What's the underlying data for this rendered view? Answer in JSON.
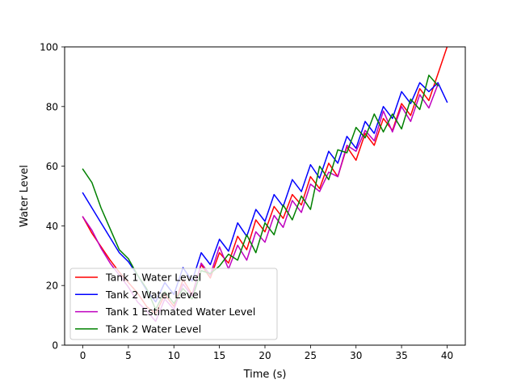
{
  "chart_data": {
    "type": "line",
    "title": "",
    "xlabel": "Time (s)",
    "ylabel": "Water Level",
    "xlim": [
      -2,
      42
    ],
    "ylim": [
      0,
      100
    ],
    "xticks": [
      0,
      5,
      10,
      15,
      20,
      25,
      30,
      35,
      40
    ],
    "yticks": [
      0,
      20,
      40,
      60,
      80,
      100
    ],
    "grid": false,
    "legend_position": "lower-left",
    "series": [
      {
        "name": "Tank 1 Water Level",
        "color": "#ff0000",
        "x": [
          0,
          1,
          2,
          3,
          4,
          5,
          6,
          7,
          8,
          9,
          10,
          11,
          12,
          13,
          14,
          15,
          16,
          17,
          18,
          19,
          20,
          21,
          22,
          23,
          24,
          25,
          26,
          27,
          28,
          29,
          30,
          31,
          32,
          33,
          34,
          35,
          36,
          37,
          38,
          39,
          40
        ],
        "y": [
          43,
          37.5,
          33,
          28.5,
          24.5,
          21,
          17.5,
          13,
          10.5,
          17,
          13,
          22,
          17,
          27,
          22.5,
          31,
          27.5,
          36.5,
          32,
          42,
          38,
          46.5,
          42.5,
          50.5,
          47,
          56.5,
          52.5,
          61,
          56.5,
          66.5,
          62,
          71,
          67,
          76,
          72,
          81,
          77,
          86,
          82,
          91,
          100
        ]
      },
      {
        "name": "Tank 2 Water Level",
        "color": "#0000ff",
        "x": [
          0,
          1,
          2,
          3,
          4,
          5,
          6,
          7,
          8,
          9,
          10,
          11,
          12,
          13,
          14,
          15,
          16,
          17,
          18,
          19,
          20,
          21,
          22,
          23,
          24,
          25,
          26,
          27,
          28,
          29,
          30,
          31,
          32,
          33,
          34,
          35,
          36,
          37,
          38,
          39,
          40
        ],
        "y": [
          51,
          46,
          41,
          36,
          31,
          28,
          23.5,
          18.5,
          14.5,
          21,
          17,
          26,
          21.5,
          31,
          27,
          35.5,
          31.5,
          41,
          36.5,
          45.5,
          41.5,
          50.5,
          46.5,
          55.5,
          51.5,
          60.5,
          56,
          65,
          61,
          70,
          66,
          75,
          71,
          80,
          76,
          85,
          81,
          88,
          85,
          88,
          81.5
        ]
      },
      {
        "name": "Tank 1 Estimated Water Level",
        "color": "#bf00bf",
        "x": [
          0,
          1,
          2,
          3,
          4,
          5,
          6,
          7,
          8,
          9,
          10,
          11,
          12,
          13,
          14,
          15,
          16,
          17,
          18,
          19,
          20,
          21,
          22,
          23,
          24,
          25,
          26,
          27,
          28,
          29,
          30,
          31,
          32,
          33,
          34,
          35,
          36,
          37,
          38,
          39
        ],
        "y": [
          43,
          38.5,
          32.5,
          27.5,
          23.5,
          19.5,
          14.5,
          11.5,
          8,
          15.5,
          12,
          20.5,
          16.5,
          27.5,
          23.5,
          33,
          25.5,
          33.5,
          28.5,
          38,
          34.5,
          43.5,
          39.5,
          48.5,
          44.5,
          54,
          51.5,
          58,
          56.5,
          67,
          65,
          72,
          68.5,
          78.5,
          71.5,
          80,
          75,
          84,
          79.5,
          87.5
        ]
      },
      {
        "name": "Tank 2 Water Level",
        "color": "#008000",
        "x": [
          0,
          1,
          2,
          3,
          4,
          5,
          6,
          7,
          8,
          9,
          10,
          11,
          12,
          13,
          14,
          15,
          16,
          17,
          18,
          19,
          20,
          21,
          22,
          23,
          24,
          25,
          26,
          27,
          28,
          29,
          30,
          31,
          32,
          33,
          34,
          35,
          36,
          37,
          38,
          39
        ],
        "y": [
          59,
          54.5,
          46,
          39,
          32,
          29,
          23.5,
          19,
          12,
          18,
          14,
          19,
          15.5,
          25,
          24,
          26.5,
          30.5,
          28.5,
          37,
          31,
          41,
          37,
          47,
          42,
          50,
          45.5,
          60,
          55.5,
          65.5,
          64.5,
          73,
          69.5,
          77.5,
          71.5,
          77.5,
          72.5,
          82.5,
          79,
          90.5,
          87
        ]
      }
    ]
  }
}
